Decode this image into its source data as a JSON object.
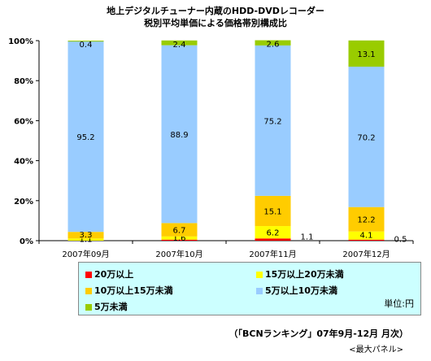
{
  "title_line1": "地上デジタルチューナー内蔵のHDD-DVDレコーダー",
  "title_line2": "税別平均単価による価格帯別構成比",
  "chart_data": {
    "type": "bar",
    "stacked": true,
    "categories": [
      "2007年09月",
      "2007年10月",
      "2007年11月",
      "2007年12月"
    ],
    "ylim": [
      0,
      100
    ],
    "yticks": [
      "0%",
      "20%",
      "40%",
      "60%",
      "80%",
      "100%"
    ],
    "series": [
      {
        "name": "20万以上",
        "color": "#ff0000",
        "values": [
          0,
          0.5,
          1.1,
          0.5
        ],
        "labels": [
          "",
          "",
          "1.1",
          "0.5"
        ]
      },
      {
        "name": "15万以上20万未満",
        "color": "#ffff00",
        "values": [
          1.1,
          1.6,
          6.2,
          4.1
        ],
        "labels": [
          "1.1",
          "1.6",
          "6.2",
          "4.1"
        ]
      },
      {
        "name": "10万以上15万未満",
        "color": "#ffcc00",
        "values": [
          3.3,
          6.7,
          15.1,
          12.2
        ],
        "labels": [
          "3.3",
          "6.7",
          "15.1",
          "12.2"
        ]
      },
      {
        "name": "5万以上10万未満",
        "color": "#99ccff",
        "values": [
          95.2,
          88.9,
          75.2,
          70.2
        ],
        "labels": [
          "95.2",
          "88.9",
          "75.2",
          "70.2"
        ]
      },
      {
        "name": "5万未満",
        "color": "#99cc00",
        "values": [
          0.4,
          2.4,
          2.6,
          13.1
        ],
        "labels": [
          "0.4",
          "2.4",
          "2.6",
          "13.1"
        ]
      }
    ]
  },
  "legend": {
    "items": [
      {
        "label": "20万以上",
        "color": "#ff0000"
      },
      {
        "label": "15万以上20万未満",
        "color": "#ffff00"
      },
      {
        "label": "10万以上15万未満",
        "color": "#ffcc00"
      },
      {
        "label": "5万以上10万未満",
        "color": "#99ccff"
      },
      {
        "label": "5万未満",
        "color": "#99cc00"
      }
    ],
    "unit": "単位:円"
  },
  "source": "（「BCNランキング」07年9月-12月 月次）",
  "panel": "<最大パネル>"
}
